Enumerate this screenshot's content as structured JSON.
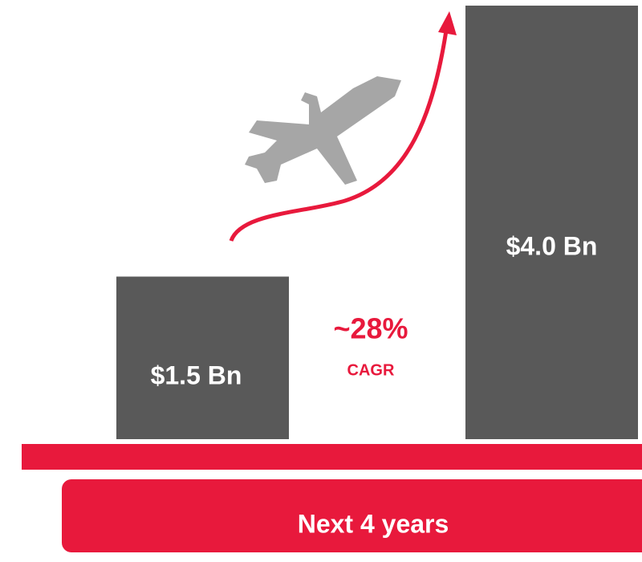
{
  "chart_data": {
    "type": "bar",
    "values": [
      1.5,
      4.0
    ],
    "value_labels": [
      "$1.5 Bn",
      "$4.0 Bn"
    ],
    "color": "#595959",
    "annotations": [
      "~28%",
      "CAGR",
      "Next 4 years"
    ],
    "accent_color": "#e8193c"
  }
}
